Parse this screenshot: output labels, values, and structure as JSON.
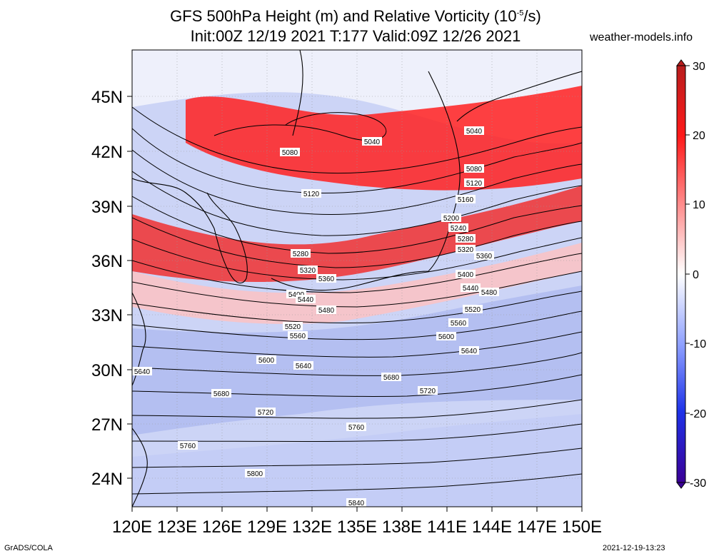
{
  "title": {
    "line1_prefix": "GFS 500hPa Height (m) and Relative Vorticity (10",
    "line1_exp": "-5",
    "line1_suffix": "/s)",
    "line2": "Init:00Z 12/19 2021 T:177 Valid:09Z 12/26 2021"
  },
  "source": "weather-models.info",
  "footer": {
    "left": "GrADS/COLA",
    "right": "2021-12-19-13:23"
  },
  "map": {
    "lon_labels": [
      "120E",
      "123E",
      "126E",
      "129E",
      "132E",
      "135E",
      "138E",
      "141E",
      "144E",
      "147E",
      "150E"
    ],
    "lat_labels": [
      "45N",
      "42N",
      "39N",
      "36N",
      "33N",
      "30N",
      "27N",
      "24N"
    ],
    "contour_labels": [
      "5040",
      "5040",
      "5080",
      "5080",
      "5120",
      "5120",
      "5160",
      "5200",
      "5240",
      "5280",
      "5280",
      "5320",
      "5320",
      "5360",
      "5360",
      "5400",
      "5400",
      "5440",
      "5440",
      "5480",
      "5480",
      "5520",
      "5520",
      "5560",
      "5560",
      "5600",
      "5600",
      "5640",
      "5640",
      "5640",
      "5680",
      "5680",
      "5720",
      "5720",
      "5760",
      "5760",
      "5800",
      "5840"
    ]
  },
  "colorbar": {
    "labels": [
      "30",
      "20",
      "10",
      "0",
      "-10",
      "-20",
      "-30"
    ],
    "colors": {
      "max": "#b21a1a",
      "pos": "#ff0000",
      "zero": "#ffffff",
      "neg": "#1e3cff",
      "min": "#3c00a0"
    }
  }
}
